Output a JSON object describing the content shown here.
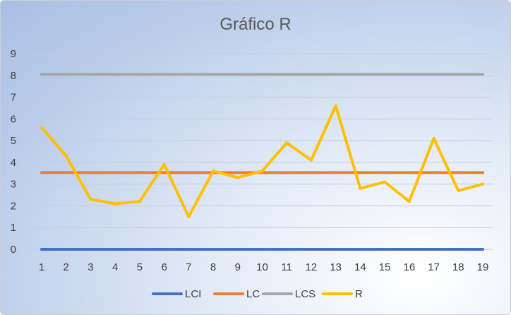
{
  "chart_data": {
    "type": "line",
    "title": "Gráfico R",
    "xlabel": "",
    "ylabel": "",
    "ylim": [
      0,
      9
    ],
    "y_ticks": [
      "0",
      "1",
      "2",
      "3",
      "4",
      "5",
      "6",
      "7",
      "8",
      "9"
    ],
    "categories": [
      "1",
      "2",
      "3",
      "4",
      "5",
      "6",
      "7",
      "8",
      "9",
      "10",
      "11",
      "12",
      "13",
      "14",
      "15",
      "16",
      "17",
      "18",
      "19"
    ],
    "grid": "horizontal",
    "legend_position": "bottom",
    "series": [
      {
        "name": "LCI",
        "color": "#4472C4",
        "values": [
          0,
          0,
          0,
          0,
          0,
          0,
          0,
          0,
          0,
          0,
          0,
          0,
          0,
          0,
          0,
          0,
          0,
          0,
          0
        ]
      },
      {
        "name": "LC",
        "color": "#ED7D31",
        "values": [
          3.53,
          3.53,
          3.53,
          3.53,
          3.53,
          3.53,
          3.53,
          3.53,
          3.53,
          3.53,
          3.53,
          3.53,
          3.53,
          3.53,
          3.53,
          3.53,
          3.53,
          3.53,
          3.53
        ]
      },
      {
        "name": "LCS",
        "color": "#A5A5A5",
        "values": [
          8.05,
          8.05,
          8.05,
          8.05,
          8.05,
          8.05,
          8.05,
          8.05,
          8.05,
          8.05,
          8.05,
          8.05,
          8.05,
          8.05,
          8.05,
          8.05,
          8.05,
          8.05,
          8.05
        ]
      },
      {
        "name": "R",
        "color": "#FFC000",
        "values": [
          5.6,
          4.3,
          2.3,
          2.1,
          2.2,
          3.9,
          1.5,
          3.6,
          3.3,
          3.6,
          4.9,
          4.1,
          6.6,
          2.8,
          3.1,
          2.2,
          5.1,
          2.7,
          3.0
        ]
      }
    ]
  }
}
